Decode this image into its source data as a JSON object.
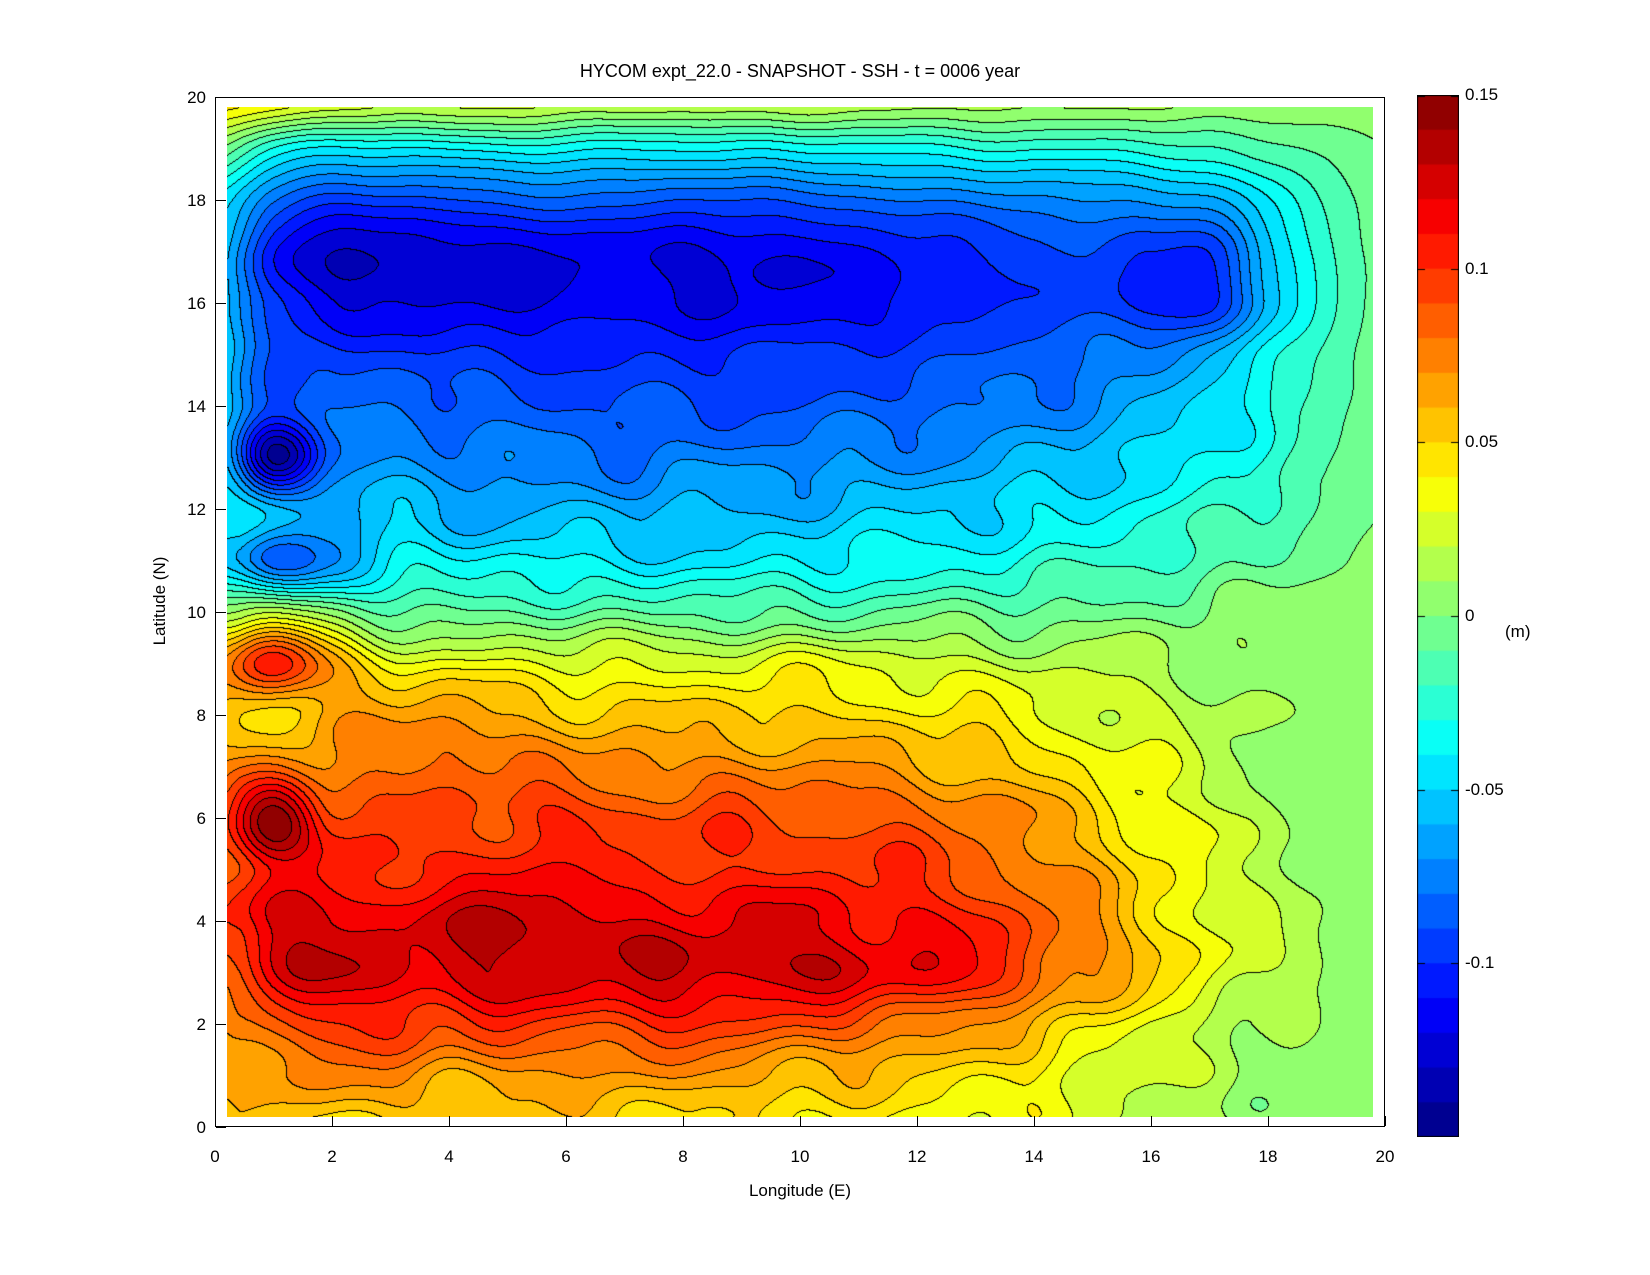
{
  "title": "HYCOM expt_22.0 - SNAPSHOT - SSH - t = 0006 year",
  "axes": {
    "xlabel": "Longitude (E)",
    "ylabel": "Latitude (N)",
    "x_ticks": [
      "0",
      "2",
      "4",
      "6",
      "8",
      "10",
      "12",
      "14",
      "16",
      "18",
      "20"
    ],
    "y_ticks": [
      "0",
      "2",
      "4",
      "6",
      "8",
      "10",
      "12",
      "14",
      "16",
      "18",
      "20"
    ],
    "x_range": [
      0,
      20
    ],
    "y_range": [
      0,
      20
    ]
  },
  "colorbar": {
    "unit_label": "(m)",
    "tick_labels": [
      "0.15",
      "0.1",
      "0.05",
      "0",
      "-0.05",
      "-0.1"
    ],
    "tick_values": [
      0.15,
      0.1,
      0.05,
      0,
      -0.05,
      -0.1
    ],
    "vmin": -0.15,
    "vmax": 0.15,
    "colormap": "jet",
    "n_bands": 30,
    "top_color": "#910000",
    "bottom_color": "#000091",
    "zero_color": "#80ff80"
  },
  "chart_data": {
    "type": "filled-contour",
    "title": "HYCOM expt_22.0 - SNAPSHOT - SSH - t = 0006 year",
    "xlabel": "Longitude (E)",
    "ylabel": "Latitude (N)",
    "legend_position": "right-colorbar",
    "grid": "off",
    "xlim": [
      0,
      20
    ],
    "ylim": [
      0,
      20
    ],
    "contour_interval_m": 0.01,
    "value_range_m": [
      -0.15,
      0.15
    ],
    "data_extent": {
      "lon": [
        0.2,
        19.8
      ],
      "lat": [
        0.2,
        19.8
      ]
    },
    "lon_grid": [
      0,
      1,
      2,
      3,
      4,
      5,
      6,
      7,
      8,
      9,
      10,
      11,
      12,
      13,
      14,
      15,
      16,
      17,
      18,
      19,
      20
    ],
    "lat_grid": [
      0,
      1,
      2,
      3,
      4,
      5,
      6,
      7,
      8,
      9,
      10,
      11,
      12,
      13,
      14,
      15,
      16,
      17,
      18,
      19,
      20
    ],
    "ssh_m": [
      [
        0.05,
        0.05,
        0.05,
        0.05,
        0.05,
        0.05,
        0.05,
        0.05,
        0.05,
        0.045,
        0.04,
        0.04,
        0.035,
        0.035,
        0.03,
        0.02,
        0.015,
        0.01,
        0.008,
        0.006,
        0.005
      ],
      [
        0.06,
        0.07,
        0.075,
        0.07,
        0.065,
        0.07,
        0.065,
        0.07,
        0.065,
        0.065,
        0.06,
        0.055,
        0.05,
        0.045,
        0.04,
        0.03,
        0.02,
        0.012,
        0.008,
        0.006,
        0.005
      ],
      [
        0.065,
        0.09,
        0.1,
        0.1,
        0.095,
        0.1,
        0.095,
        0.1,
        0.1,
        0.095,
        0.09,
        0.085,
        0.08,
        0.07,
        0.055,
        0.045,
        0.03,
        0.02,
        0.012,
        0.008,
        0.005
      ],
      [
        0.08,
        0.12,
        0.125,
        0.123,
        0.124,
        0.128,
        0.126,
        0.124,
        0.13,
        0.126,
        0.128,
        0.12,
        0.115,
        0.108,
        0.09,
        0.07,
        0.05,
        0.035,
        0.018,
        0.01,
        0.006
      ],
      [
        0.1,
        0.124,
        0.122,
        0.118,
        0.122,
        0.134,
        0.128,
        0.12,
        0.118,
        0.118,
        0.12,
        0.115,
        0.11,
        0.1,
        0.088,
        0.068,
        0.05,
        0.032,
        0.018,
        0.01,
        0.006
      ],
      [
        0.085,
        0.105,
        0.11,
        0.1,
        0.103,
        0.112,
        0.105,
        0.1,
        0.104,
        0.1,
        0.1,
        0.1,
        0.095,
        0.088,
        0.075,
        0.06,
        0.045,
        0.028,
        0.015,
        0.009,
        0.006
      ],
      [
        0.09,
        0.15,
        0.1,
        0.092,
        0.09,
        0.094,
        0.1,
        0.094,
        0.09,
        0.094,
        0.09,
        0.088,
        0.084,
        0.078,
        0.066,
        0.052,
        0.038,
        0.024,
        0.013,
        0.008,
        0.006
      ],
      [
        0.07,
        0.08,
        0.072,
        0.08,
        0.088,
        0.08,
        0.075,
        0.075,
        0.07,
        0.074,
        0.07,
        0.068,
        0.064,
        0.058,
        0.048,
        0.038,
        0.028,
        0.018,
        0.01,
        0.007,
        0.005
      ],
      [
        0.055,
        0.05,
        0.062,
        0.066,
        0.07,
        0.06,
        0.055,
        0.054,
        0.05,
        0.054,
        0.05,
        0.048,
        0.044,
        0.04,
        0.034,
        0.028,
        0.02,
        0.014,
        0.009,
        0.006,
        0.005
      ],
      [
        0.07,
        0.105,
        0.062,
        0.04,
        0.034,
        0.03,
        0.03,
        0.03,
        0.029,
        0.03,
        0.03,
        0.028,
        0.026,
        0.022,
        0.02,
        0.016,
        0.012,
        0.01,
        0.007,
        0.005,
        0.005
      ],
      [
        0.012,
        0.02,
        0.0,
        -0.012,
        -0.012,
        -0.006,
        -0.01,
        -0.012,
        -0.01,
        -0.012,
        -0.01,
        -0.01,
        -0.01,
        -0.008,
        -0.006,
        -0.004,
        -0.002,
        0.0,
        0.002,
        0.004,
        0.004
      ],
      [
        -0.05,
        -0.09,
        -0.068,
        -0.036,
        -0.042,
        -0.038,
        -0.042,
        -0.044,
        -0.042,
        -0.044,
        -0.04,
        -0.038,
        -0.035,
        -0.032,
        -0.03,
        -0.026,
        -0.02,
        -0.014,
        -0.008,
        -0.002,
        0.002
      ],
      [
        -0.04,
        -0.052,
        -0.062,
        -0.056,
        -0.06,
        -0.062,
        -0.06,
        -0.062,
        -0.06,
        -0.06,
        -0.057,
        -0.055,
        -0.052,
        -0.05,
        -0.045,
        -0.04,
        -0.034,
        -0.027,
        -0.018,
        -0.008,
        0.0
      ],
      [
        -0.055,
        -0.14,
        -0.08,
        -0.07,
        -0.075,
        -0.076,
        -0.075,
        -0.08,
        -0.076,
        -0.075,
        -0.074,
        -0.072,
        -0.07,
        -0.066,
        -0.06,
        -0.055,
        -0.048,
        -0.038,
        -0.026,
        -0.012,
        -0.002
      ],
      [
        -0.05,
        -0.09,
        -0.086,
        -0.08,
        -0.084,
        -0.086,
        -0.09,
        -0.09,
        -0.092,
        -0.09,
        -0.09,
        -0.086,
        -0.084,
        -0.08,
        -0.075,
        -0.07,
        -0.06,
        -0.048,
        -0.032,
        -0.015,
        -0.003
      ],
      [
        -0.048,
        -0.092,
        -0.096,
        -0.096,
        -0.1,
        -0.102,
        -0.1,
        -0.1,
        -0.102,
        -0.1,
        -0.1,
        -0.096,
        -0.094,
        -0.09,
        -0.085,
        -0.08,
        -0.074,
        -0.058,
        -0.038,
        -0.018,
        -0.004
      ],
      [
        -0.05,
        -0.1,
        -0.12,
        -0.12,
        -0.121,
        -0.12,
        -0.118,
        -0.116,
        -0.117,
        -0.12,
        -0.116,
        -0.114,
        -0.11,
        -0.1,
        -0.096,
        -0.096,
        -0.102,
        -0.105,
        -0.058,
        -0.024,
        -0.006
      ],
      [
        -0.05,
        -0.11,
        -0.126,
        -0.13,
        -0.126,
        -0.122,
        -0.12,
        -0.116,
        -0.121,
        -0.12,
        -0.116,
        -0.111,
        -0.106,
        -0.1,
        -0.095,
        -0.091,
        -0.096,
        -0.1,
        -0.054,
        -0.023,
        -0.006
      ],
      [
        -0.042,
        -0.08,
        -0.096,
        -0.095,
        -0.09,
        -0.086,
        -0.086,
        -0.086,
        -0.09,
        -0.09,
        -0.086,
        -0.084,
        -0.08,
        -0.076,
        -0.074,
        -0.07,
        -0.069,
        -0.064,
        -0.04,
        -0.018,
        -0.005
      ],
      [
        0.0,
        -0.03,
        -0.042,
        -0.042,
        -0.04,
        -0.036,
        -0.036,
        -0.04,
        -0.04,
        -0.04,
        -0.036,
        -0.035,
        -0.034,
        -0.031,
        -0.03,
        -0.029,
        -0.026,
        -0.021,
        -0.014,
        -0.008,
        0.0
      ],
      [
        0.05,
        0.042,
        0.032,
        0.03,
        0.03,
        0.028,
        0.026,
        0.025,
        0.024,
        0.024,
        0.022,
        0.02,
        0.02,
        0.018,
        0.018,
        0.016,
        0.015,
        0.013,
        0.01,
        0.007,
        0.005
      ]
    ]
  }
}
